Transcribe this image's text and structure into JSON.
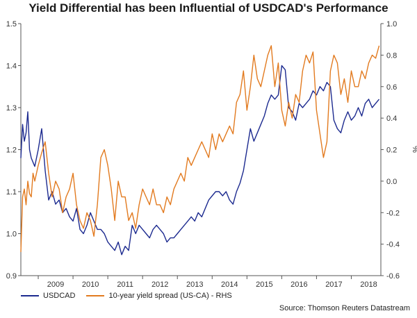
{
  "chart_data": {
    "type": "line",
    "title": "Yield Differential has been Influential of USDCAD's Performance",
    "left_axis": {
      "label": "",
      "range": [
        0.9,
        1.5
      ],
      "ticks": [
        "0.9",
        "1.0",
        "1.1",
        "1.2",
        "1.3",
        "1.4",
        "1.5"
      ]
    },
    "right_axis": {
      "label": "%",
      "range": [
        -0.6,
        1.0
      ],
      "ticks": [
        "-0.6",
        "-0.4",
        "-0.2",
        "0.0",
        "0.2",
        "0.4",
        "0.6",
        "0.8",
        "1.0"
      ]
    },
    "x_axis": {
      "range": [
        2008.5,
        2018.85
      ],
      "ticks": [
        "2009",
        "2010",
        "2011",
        "2012",
        "2013",
        "2014",
        "2015",
        "2016",
        "2017",
        "2018"
      ]
    },
    "grid": false,
    "legend_position": "bottom-left",
    "source": "Source: Thomson Reuters Datastream",
    "series": [
      {
        "name": "USDCAD",
        "axis": "left",
        "color": "#1c2a8f",
        "x": [
          2008.5,
          2008.55,
          2008.6,
          2008.65,
          2008.7,
          2008.75,
          2008.8,
          2008.85,
          2008.9,
          2009.0,
          2009.1,
          2009.2,
          2009.3,
          2009.4,
          2009.5,
          2009.6,
          2009.7,
          2009.8,
          2009.9,
          2010.0,
          2010.1,
          2010.2,
          2010.3,
          2010.4,
          2010.5,
          2010.6,
          2010.7,
          2010.8,
          2010.9,
          2011.0,
          2011.1,
          2011.2,
          2011.3,
          2011.4,
          2011.5,
          2011.6,
          2011.7,
          2011.8,
          2011.9,
          2012.0,
          2012.1,
          2012.2,
          2012.3,
          2012.4,
          2012.5,
          2012.6,
          2012.7,
          2012.8,
          2012.9,
          2013.0,
          2013.1,
          2013.2,
          2013.3,
          2013.4,
          2013.5,
          2013.6,
          2013.7,
          2013.8,
          2013.9,
          2014.0,
          2014.1,
          2014.2,
          2014.3,
          2014.4,
          2014.5,
          2014.6,
          2014.7,
          2014.8,
          2014.9,
          2015.0,
          2015.1,
          2015.2,
          2015.3,
          2015.4,
          2015.5,
          2015.6,
          2015.7,
          2015.8,
          2015.9,
          2016.0,
          2016.1,
          2016.2,
          2016.3,
          2016.4,
          2016.5,
          2016.6,
          2016.7,
          2016.8,
          2016.9,
          2017.0,
          2017.1,
          2017.2,
          2017.3,
          2017.4,
          2017.5,
          2017.6,
          2017.7,
          2017.8,
          2017.9,
          2018.0,
          2018.1,
          2018.2,
          2018.3,
          2018.4,
          2018.5,
          2018.6,
          2018.7,
          2018.8
        ],
        "values": [
          1.18,
          1.26,
          1.22,
          1.24,
          1.29,
          1.2,
          1.18,
          1.17,
          1.16,
          1.2,
          1.25,
          1.15,
          1.08,
          1.1,
          1.07,
          1.08,
          1.05,
          1.06,
          1.04,
          1.03,
          1.06,
          1.01,
          1.0,
          1.02,
          1.05,
          1.03,
          1.01,
          1.01,
          1.0,
          0.98,
          0.97,
          0.96,
          0.98,
          0.95,
          0.97,
          0.96,
          1.02,
          1.0,
          1.02,
          1.01,
          1.0,
          0.99,
          1.01,
          1.02,
          1.01,
          1.0,
          0.98,
          0.99,
          0.99,
          1.0,
          1.01,
          1.02,
          1.03,
          1.04,
          1.03,
          1.05,
          1.04,
          1.06,
          1.08,
          1.09,
          1.1,
          1.1,
          1.09,
          1.1,
          1.08,
          1.07,
          1.1,
          1.12,
          1.15,
          1.2,
          1.25,
          1.22,
          1.24,
          1.26,
          1.28,
          1.31,
          1.33,
          1.32,
          1.33,
          1.4,
          1.39,
          1.3,
          1.29,
          1.27,
          1.31,
          1.3,
          1.31,
          1.32,
          1.34,
          1.33,
          1.35,
          1.34,
          1.36,
          1.35,
          1.27,
          1.25,
          1.24,
          1.27,
          1.29,
          1.27,
          1.28,
          1.3,
          1.28,
          1.31,
          1.32,
          1.3,
          1.31,
          1.32
        ]
      },
      {
        "name": "10-year yield spread (US-CA) - RHS",
        "axis": "right",
        "color": "#e27a1f",
        "x": [
          2008.5,
          2008.55,
          2008.6,
          2008.65,
          2008.7,
          2008.75,
          2008.8,
          2008.85,
          2008.9,
          2009.0,
          2009.1,
          2009.2,
          2009.3,
          2009.4,
          2009.5,
          2009.6,
          2009.7,
          2009.8,
          2009.9,
          2010.0,
          2010.1,
          2010.2,
          2010.3,
          2010.4,
          2010.5,
          2010.6,
          2010.7,
          2010.8,
          2010.9,
          2011.0,
          2011.1,
          2011.2,
          2011.3,
          2011.4,
          2011.5,
          2011.6,
          2011.7,
          2011.8,
          2011.9,
          2012.0,
          2012.1,
          2012.2,
          2012.3,
          2012.4,
          2012.5,
          2012.6,
          2012.7,
          2012.8,
          2012.9,
          2013.0,
          2013.1,
          2013.2,
          2013.3,
          2013.4,
          2013.5,
          2013.6,
          2013.7,
          2013.8,
          2013.9,
          2014.0,
          2014.1,
          2014.2,
          2014.3,
          2014.4,
          2014.5,
          2014.6,
          2014.7,
          2014.8,
          2014.9,
          2015.0,
          2015.1,
          2015.2,
          2015.3,
          2015.4,
          2015.5,
          2015.6,
          2015.7,
          2015.8,
          2015.9,
          2016.0,
          2016.1,
          2016.2,
          2016.3,
          2016.4,
          2016.5,
          2016.6,
          2016.7,
          2016.8,
          2016.9,
          2017.0,
          2017.1,
          2017.2,
          2017.3,
          2017.4,
          2017.5,
          2017.6,
          2017.7,
          2017.8,
          2017.9,
          2018.0,
          2018.1,
          2018.2,
          2018.3,
          2018.4,
          2018.5,
          2018.6,
          2018.7,
          2018.8
        ],
        "values": [
          -0.45,
          -0.1,
          -0.05,
          -0.15,
          0.0,
          -0.08,
          -0.1,
          0.05,
          0.0,
          0.1,
          0.18,
          0.25,
          0.05,
          -0.1,
          0.0,
          -0.05,
          -0.2,
          -0.1,
          -0.05,
          0.05,
          -0.15,
          -0.25,
          -0.3,
          -0.2,
          -0.25,
          -0.35,
          -0.15,
          0.15,
          0.2,
          0.1,
          -0.05,
          -0.25,
          0.0,
          -0.1,
          -0.1,
          -0.25,
          -0.2,
          -0.3,
          -0.15,
          -0.05,
          -0.1,
          -0.15,
          -0.05,
          -0.15,
          -0.15,
          -0.2,
          -0.1,
          -0.15,
          -0.05,
          0.0,
          0.05,
          0.0,
          0.15,
          0.1,
          0.15,
          0.2,
          0.25,
          0.2,
          0.15,
          0.3,
          0.2,
          0.3,
          0.25,
          0.3,
          0.35,
          0.3,
          0.5,
          0.55,
          0.7,
          0.45,
          0.6,
          0.8,
          0.65,
          0.6,
          0.7,
          0.8,
          0.86,
          0.6,
          0.75,
          0.45,
          0.35,
          0.5,
          0.4,
          0.55,
          0.5,
          0.7,
          0.8,
          0.75,
          0.82,
          0.45,
          0.3,
          0.15,
          0.25,
          0.7,
          0.8,
          0.75,
          0.55,
          0.65,
          0.5,
          0.7,
          0.6,
          0.6,
          0.7,
          0.65,
          0.75,
          0.8,
          0.78,
          0.86
        ]
      }
    ]
  }
}
